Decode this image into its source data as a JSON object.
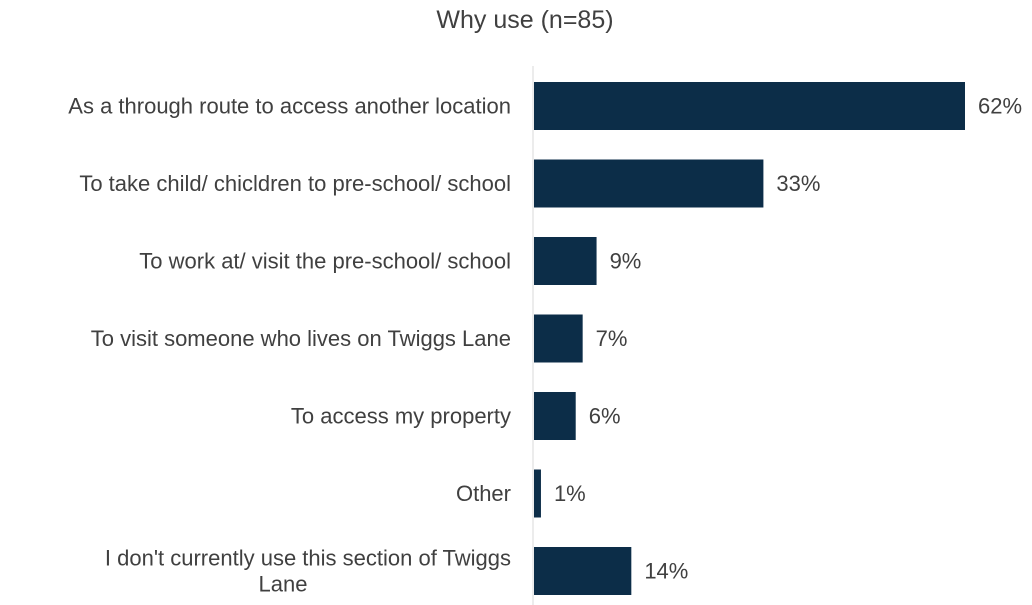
{
  "chart_data": {
    "type": "bar",
    "orientation": "horizontal",
    "title": "Why use (n=85)",
    "categories": [
      "As a through route to access another location",
      "To take child/ chicldren to pre-school/ school",
      "To work at/ visit the pre-school/ school",
      "To visit someone who lives on Twiggs Lane",
      "To access my property",
      "Other",
      "I don't currently use this section of Twiggs Lane"
    ],
    "category_lines": [
      [
        "As a through route to access another location"
      ],
      [
        "To take child/ chicldren to pre-school/ school"
      ],
      [
        "To work at/ visit the pre-school/ school"
      ],
      [
        "To visit someone who lives on Twiggs Lane"
      ],
      [
        "To access my property"
      ],
      [
        "Other"
      ],
      [
        "I don't currently use this section of Twiggs",
        "Lane"
      ]
    ],
    "values": [
      62,
      33,
      9,
      7,
      6,
      1,
      14
    ],
    "value_labels": [
      "62%",
      "33%",
      "9%",
      "7%",
      "6%",
      "1%",
      "14%"
    ],
    "unit": "%",
    "xlim": [
      0,
      62
    ],
    "grid": false,
    "legend": "none",
    "bar_color": "#0c2d48",
    "axis_color": "#d9d9d9"
  }
}
